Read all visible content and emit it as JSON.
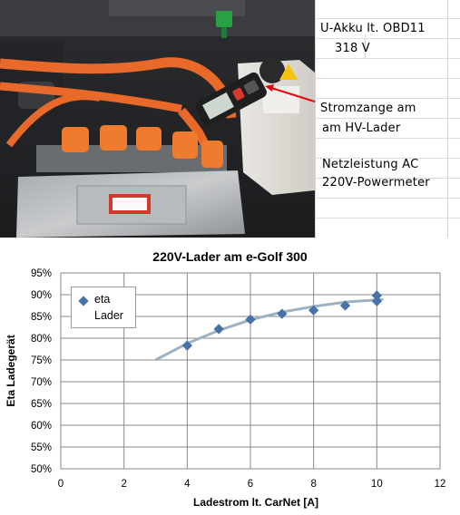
{
  "photo": {
    "description_icon": "engine-bay-photo"
  },
  "notes": {
    "lines": [
      "U-Akku lt. OBD11",
      "318  V",
      "Stromzange am",
      "am HV-Lader",
      "Netzleistung AC",
      "220V-Powermeter"
    ]
  },
  "colors": {
    "marker": "#4572a7",
    "trend": "#9fb0be",
    "arrow": "#e8000b"
  },
  "chart_data": {
    "type": "scatter",
    "title": "220V-Lader am e-Golf 300",
    "xlabel": "Ladestrom lt. CarNet [A]",
    "ylabel": "Eta Ladegerät",
    "xlim": [
      0,
      12
    ],
    "ylim": [
      50,
      95
    ],
    "x_ticks": [
      "0",
      "2",
      "4",
      "6",
      "8",
      "10",
      "12"
    ],
    "y_ticks": [
      "50%",
      "55%",
      "60%",
      "65%",
      "70%",
      "75%",
      "80%",
      "85%",
      "90%",
      "95%"
    ],
    "grid": true,
    "legend_position": "top-left",
    "series": [
      {
        "name": "eta Lader",
        "x": [
          4,
          5,
          6,
          7,
          8,
          9,
          10,
          10
        ],
        "y": [
          78.3,
          82.1,
          84.3,
          85.6,
          86.4,
          87.5,
          88.5,
          89.8
        ]
      }
    ],
    "trendline": {
      "x": [
        3,
        4,
        5,
        6,
        7,
        8,
        9,
        10,
        10.2
      ],
      "y": [
        75.0,
        78.8,
        81.8,
        84.2,
        86.0,
        87.3,
        88.3,
        88.8,
        88.9
      ]
    }
  }
}
